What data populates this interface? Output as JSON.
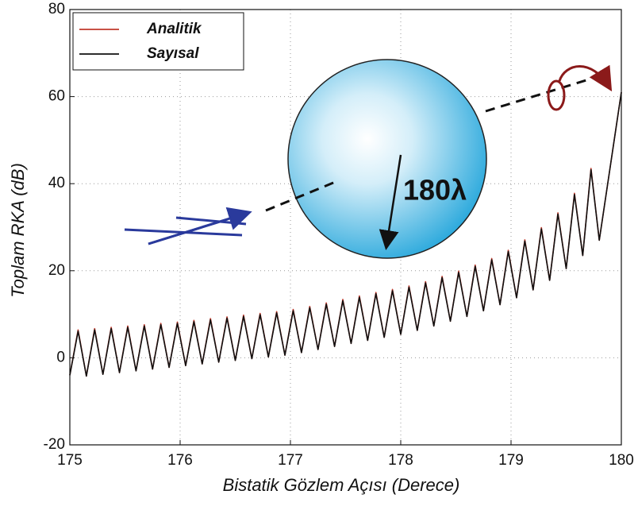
{
  "chart_data": {
    "type": "line",
    "xlabel": "Bistatik Gözlem Açısı (Derece)",
    "ylabel": "Toplam RKA (dB)",
    "annotation": "180λ",
    "xlim": [
      175,
      180
    ],
    "ylim": [
      -20,
      80
    ],
    "xticks": [
      175,
      176,
      177,
      178,
      179,
      180
    ],
    "yticks": [
      -20,
      0,
      20,
      40,
      60,
      80
    ],
    "grid": true,
    "legend": "upper left",
    "x": [
      175.0,
      175.075,
      175.15,
      175.225,
      175.3,
      175.375,
      175.45,
      175.525,
      175.6,
      175.675,
      175.75,
      175.825,
      175.9,
      175.975,
      176.05,
      176.125,
      176.2,
      176.275,
      176.35,
      176.425,
      176.5,
      176.575,
      176.65,
      176.725,
      176.8,
      176.875,
      176.95,
      177.025,
      177.1,
      177.175,
      177.25,
      177.325,
      177.4,
      177.475,
      177.55,
      177.625,
      177.7,
      177.775,
      177.85,
      177.925,
      178.0,
      178.075,
      178.15,
      178.225,
      178.3,
      178.375,
      178.45,
      178.525,
      178.6,
      178.675,
      178.75,
      178.825,
      178.9,
      178.975,
      179.05,
      179.125,
      179.2,
      179.275,
      179.35,
      179.425,
      179.5,
      179.575,
      179.65,
      179.725,
      179.8,
      180.0
    ],
    "series": [
      {
        "name": "Analitik",
        "color": "#c0392b",
        "values": [
          -4,
          6.4,
          -4.2,
          6.7,
          -3.8,
          7.0,
          -3.4,
          7.3,
          -3.0,
          7.6,
          -2.6,
          7.9,
          -2.2,
          8.2,
          -1.8,
          8.6,
          -1.4,
          9.0,
          -1.0,
          9.4,
          -0.6,
          9.8,
          -0.2,
          10.2,
          0.2,
          10.6,
          0.6,
          11.1,
          1.2,
          11.8,
          1.9,
          12.6,
          2.6,
          13.4,
          3.3,
          14.2,
          4.0,
          15.0,
          4.7,
          15.7,
          5.4,
          16.5,
          6.3,
          17.5,
          7.3,
          18.7,
          8.4,
          19.9,
          9.5,
          21.3,
          10.8,
          22.8,
          12.2,
          24.7,
          13.8,
          27.1,
          15.6,
          29.9,
          17.8,
          33.3,
          20.5,
          37.8,
          23.5,
          43.5,
          27.0,
          61
        ]
      },
      {
        "name": "Sayısal",
        "color": "#111111",
        "values": [
          -4,
          6.1,
          -4.2,
          6.4,
          -3.8,
          6.7,
          -3.4,
          7.0,
          -3.0,
          7.3,
          -2.6,
          7.6,
          -2.2,
          7.9,
          -1.8,
          8.3,
          -1.4,
          8.7,
          -1.0,
          9.1,
          -0.6,
          9.5,
          -0.2,
          9.9,
          0.2,
          10.3,
          0.6,
          10.8,
          1.2,
          11.5,
          1.9,
          12.3,
          2.6,
          13.1,
          3.3,
          13.9,
          4.0,
          14.7,
          4.7,
          15.4,
          5.4,
          16.2,
          6.3,
          17.2,
          7.3,
          18.4,
          8.4,
          19.6,
          9.5,
          21.0,
          10.8,
          22.5,
          12.2,
          24.4,
          13.8,
          26.8,
          15.6,
          29.6,
          17.8,
          33.0,
          20.5,
          37.5,
          23.5,
          43.2,
          27.0,
          61
        ]
      }
    ]
  }
}
